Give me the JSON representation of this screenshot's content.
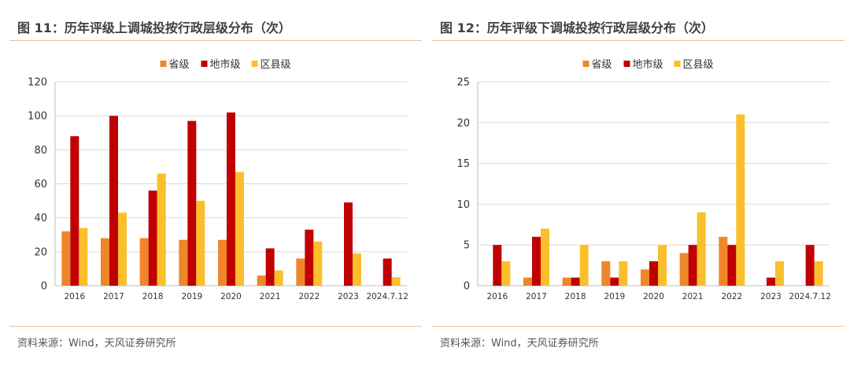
{
  "colors": {
    "province": "#f0862a",
    "city": "#c00000",
    "district": "#fbbf2b",
    "rule": "#f2c08d",
    "grid": "#d9d9d9"
  },
  "left": {
    "title": "图 11：历年评级上调城投按行政层级分布（次）",
    "source": "资料来源：Wind，天风证券研究所"
  },
  "right": {
    "title": "图 12：历年评级下调城投按行政层级分布（次）",
    "source": "资料来源：Wind，天风证券研究所"
  },
  "chart_data": [
    {
      "type": "bar",
      "categories": [
        "2016",
        "2017",
        "2018",
        "2019",
        "2020",
        "2021",
        "2022",
        "2023",
        "2024.7.12"
      ],
      "series": [
        {
          "name": "省级",
          "values": [
            32,
            28,
            28,
            27,
            27,
            6,
            16,
            0,
            0
          ]
        },
        {
          "name": "地市级",
          "values": [
            88,
            100,
            56,
            97,
            102,
            22,
            33,
            49,
            16
          ]
        },
        {
          "name": "区县级",
          "values": [
            34,
            43,
            66,
            50,
            67,
            9,
            26,
            19,
            5
          ]
        }
      ],
      "ylim": [
        0,
        120
      ],
      "yticks": [
        0,
        20,
        40,
        60,
        80,
        100,
        120
      ],
      "grid": true,
      "legend": "top-center"
    },
    {
      "type": "bar",
      "categories": [
        "2016",
        "2017",
        "2018",
        "2019",
        "2020",
        "2021",
        "2022",
        "2023",
        "2024.7.12"
      ],
      "series": [
        {
          "name": "省级",
          "values": [
            0,
            1,
            1,
            3,
            2,
            4,
            6,
            0,
            0
          ]
        },
        {
          "name": "地市级",
          "values": [
            5,
            6,
            1,
            1,
            3,
            5,
            5,
            1,
            5
          ]
        },
        {
          "name": "区县级",
          "values": [
            3,
            7,
            5,
            3,
            5,
            9,
            21,
            3,
            3
          ]
        }
      ],
      "ylim": [
        0,
        25
      ],
      "yticks": [
        0,
        5,
        10,
        15,
        20,
        25
      ],
      "grid": true,
      "legend": "top-center"
    }
  ]
}
